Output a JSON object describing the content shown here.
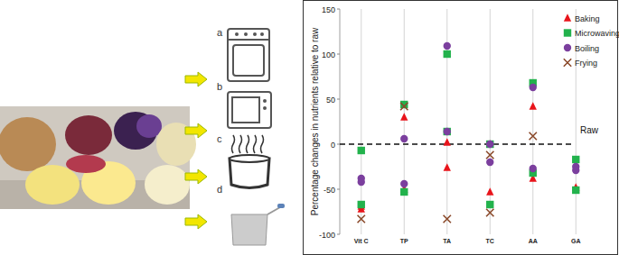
{
  "chart_data": {
    "type": "scatter",
    "ylabel": "Percentage changes in nutrients relative to raw",
    "categories": [
      "Vit C",
      "TP",
      "TA",
      "TC",
      "AA",
      "GA"
    ],
    "ylim": [
      -100,
      150
    ],
    "yticks": [
      -100,
      -50,
      0,
      50,
      100,
      150
    ],
    "grid": true,
    "legend": "upper right",
    "reference_line": {
      "value": 0,
      "label": "Raw"
    },
    "series": [
      {
        "name": "Baking",
        "color": "#e8141b",
        "marker": "triangle",
        "values": [
          [
            -72,
            -69
          ],
          [
            30,
            -50
          ],
          [
            2,
            -26
          ],
          [
            0,
            -53
          ],
          [
            42,
            -38
          ],
          [
            -48
          ]
        ]
      },
      {
        "name": "Microwaving",
        "color": "#22b24c",
        "marker": "square",
        "values": [
          [
            -7,
            -67
          ],
          [
            44,
            -53
          ],
          [
            100,
            14
          ],
          [
            0,
            -67
          ],
          [
            68,
            -32
          ],
          [
            -17,
            -51
          ]
        ]
      },
      {
        "name": "Boiling",
        "color": "#7b3f9e",
        "marker": "circle",
        "values": [
          [
            -38,
            -42
          ],
          [
            6,
            -44
          ],
          [
            109,
            14
          ],
          [
            -20,
            0
          ],
          [
            63,
            -27
          ],
          [
            -25,
            -29
          ]
        ]
      },
      {
        "name": "Frying",
        "color": "#8b4a2b",
        "marker": "x",
        "values": [
          [
            -83
          ],
          [
            42
          ],
          [
            -83
          ],
          [
            -12,
            -76
          ],
          [
            9
          ],
          []
        ]
      }
    ]
  },
  "method_icons": {
    "labels": [
      "a",
      "b",
      "c",
      "d"
    ]
  }
}
